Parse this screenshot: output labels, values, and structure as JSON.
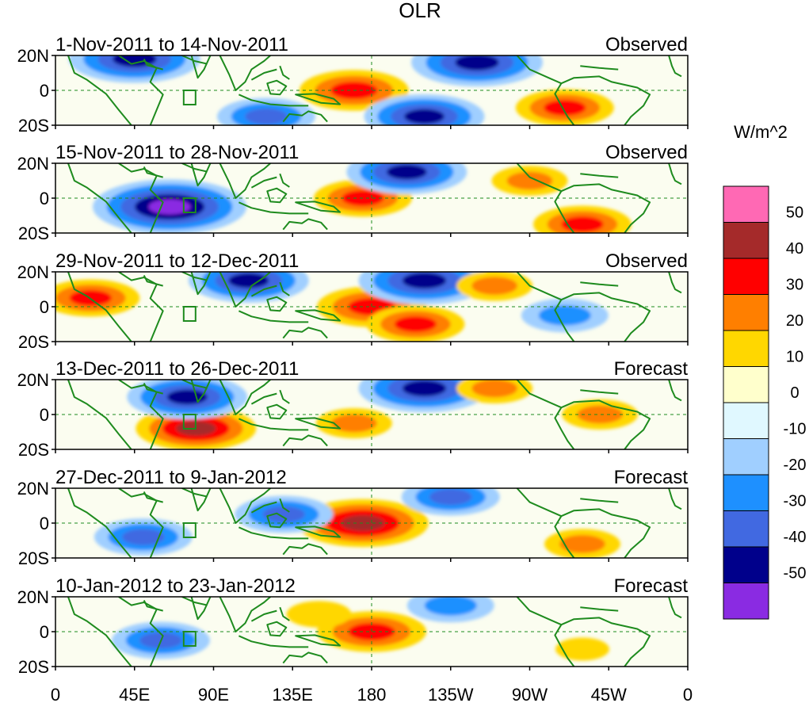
{
  "chart_data": {
    "type": "heatmap",
    "title": "OLR",
    "units": "W/m^2",
    "lon_ticks": [
      "0",
      "45E",
      "90E",
      "135E",
      "180",
      "135W",
      "90W",
      "45W",
      "0"
    ],
    "lat_ticks": [
      "20N",
      "0",
      "20S"
    ],
    "lon_range": [
      0,
      360
    ],
    "lat_range": [
      -20,
      20
    ],
    "colorbar": {
      "tick_labels": [
        "50",
        "40",
        "30",
        "20",
        "10",
        "0",
        "-10",
        "-20",
        "-30",
        "-40",
        "-50"
      ],
      "levels": [
        {
          "range": "> 50",
          "color": "#ff69b4"
        },
        {
          "range": "40 to 50",
          "color": "#a52a2a"
        },
        {
          "range": "30 to 40",
          "color": "#ff0000"
        },
        {
          "range": "20 to 30",
          "color": "#ff7f00"
        },
        {
          "range": "10 to 20",
          "color": "#ffd700"
        },
        {
          "range": "0 to 10",
          "color": "#ffffcc"
        },
        {
          "range": "-10 to 0",
          "color": "#e0f8ff"
        },
        {
          "range": "-20 to -10",
          "color": "#a0cfff"
        },
        {
          "range": "-30 to -20",
          "color": "#1e90ff"
        },
        {
          "range": "-40 to -30",
          "color": "#4169e1"
        },
        {
          "range": "-50 to -40",
          "color": "#00008b"
        },
        {
          "range": "< -50",
          "color": "#8a2be2"
        }
      ]
    },
    "panels": [
      {
        "period": "1-Nov-2011 to 14-Nov-2011",
        "kind": "Observed",
        "anomalies": [
          {
            "lon": 170,
            "lat": 0,
            "value": 35
          },
          {
            "lon": 240,
            "lat": 16,
            "value": -45
          },
          {
            "lon": 210,
            "lat": -15,
            "value": -40
          },
          {
            "lon": 290,
            "lat": -10,
            "value": 30
          },
          {
            "lon": 120,
            "lat": -15,
            "value": -30
          },
          {
            "lon": 45,
            "lat": 18,
            "value": -45
          }
        ]
      },
      {
        "period": "15-Nov-2011 to 28-Nov-2011",
        "kind": "Observed",
        "anomalies": [
          {
            "lon": 65,
            "lat": -5,
            "value": -55
          },
          {
            "lon": 175,
            "lat": 0,
            "value": 30
          },
          {
            "lon": 200,
            "lat": 15,
            "value": -40
          },
          {
            "lon": 270,
            "lat": 10,
            "value": 20
          },
          {
            "lon": 300,
            "lat": -15,
            "value": 30
          }
        ]
      },
      {
        "period": "29-Nov-2011 to 12-Dec-2011",
        "kind": "Observed",
        "anomalies": [
          {
            "lon": 180,
            "lat": 0,
            "value": 35
          },
          {
            "lon": 205,
            "lat": -10,
            "value": 30
          },
          {
            "lon": 20,
            "lat": 5,
            "value": 30
          },
          {
            "lon": 110,
            "lat": 15,
            "value": -40
          },
          {
            "lon": 210,
            "lat": 15,
            "value": -45
          },
          {
            "lon": 250,
            "lat": 12,
            "value": 20
          },
          {
            "lon": 290,
            "lat": -5,
            "value": -25
          }
        ]
      },
      {
        "period": "13-Dec-2011 to 26-Dec-2011",
        "kind": "Forecast",
        "anomalies": [
          {
            "lon": 80,
            "lat": -8,
            "value": 40
          },
          {
            "lon": 75,
            "lat": 10,
            "value": -40
          },
          {
            "lon": 210,
            "lat": 15,
            "value": -45
          },
          {
            "lon": 170,
            "lat": -5,
            "value": 20
          },
          {
            "lon": 250,
            "lat": 15,
            "value": 20
          },
          {
            "lon": 310,
            "lat": 0,
            "value": 20
          }
        ]
      },
      {
        "period": "27-Dec-2011 to 9-Jan-2012",
        "kind": "Forecast",
        "anomalies": [
          {
            "lon": 175,
            "lat": 0,
            "value": 45
          },
          {
            "lon": 50,
            "lat": -8,
            "value": -30
          },
          {
            "lon": 130,
            "lat": 5,
            "value": -30
          },
          {
            "lon": 225,
            "lat": 15,
            "value": -30
          },
          {
            "lon": 300,
            "lat": -12,
            "value": 20
          }
        ]
      },
      {
        "period": "10-Jan-2012 to 23-Jan-2012",
        "kind": "Forecast",
        "anomalies": [
          {
            "lon": 180,
            "lat": 0,
            "value": 35
          },
          {
            "lon": 60,
            "lat": -5,
            "value": -30
          },
          {
            "lon": 225,
            "lat": 15,
            "value": -25
          },
          {
            "lon": 150,
            "lat": 10,
            "value": 15
          },
          {
            "lon": 300,
            "lat": -10,
            "value": 10
          }
        ]
      }
    ]
  }
}
